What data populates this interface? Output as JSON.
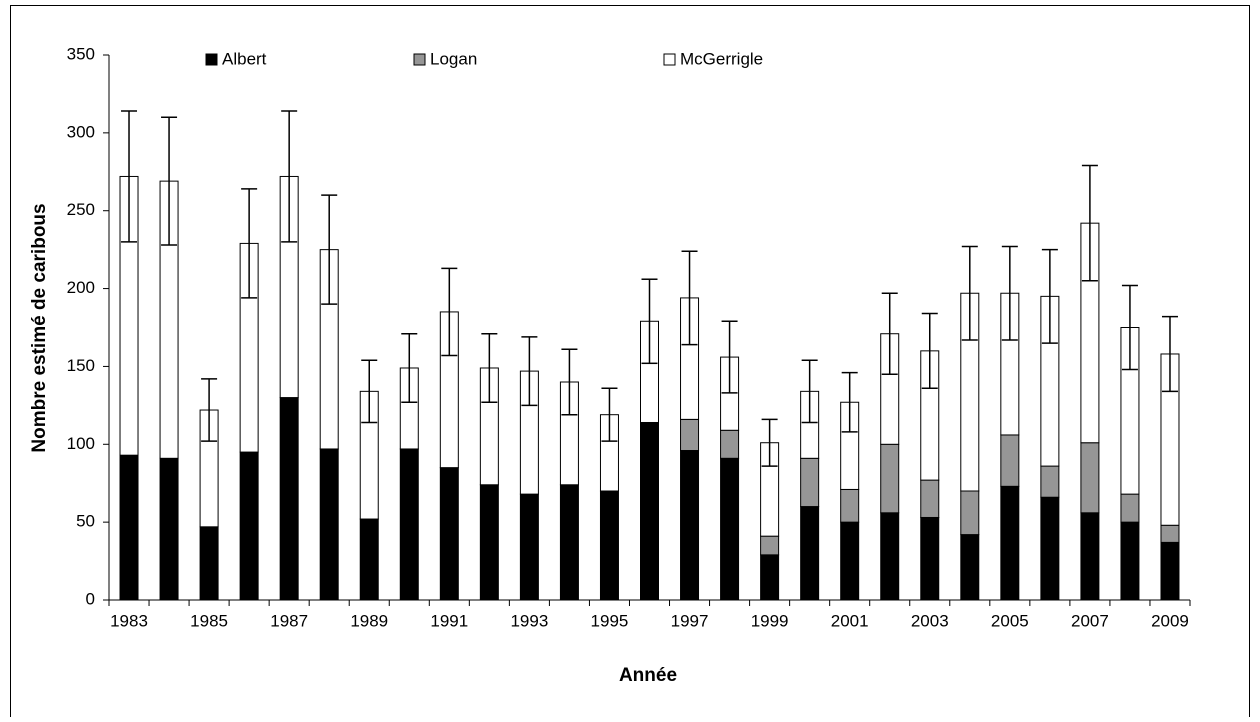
{
  "chart_data": {
    "type": "bar",
    "stacked": true,
    "xlabel": "Année",
    "ylabel": "Nombre estimé de caribous",
    "categories": [
      "1983",
      null,
      "1985",
      null,
      "1987",
      null,
      "1989",
      null,
      "1991",
      null,
      "1993",
      null,
      "1995",
      null,
      "1997",
      null,
      "1999",
      null,
      "2001",
      null,
      "2003",
      null,
      "2005",
      null,
      "2007",
      null,
      "2009"
    ],
    "series": [
      {
        "name": "Albert",
        "color": "#000000",
        "values": [
          93,
          91,
          47,
          95,
          130,
          97,
          52,
          97,
          85,
          74,
          68,
          74,
          70,
          114,
          96,
          91,
          29,
          60,
          50,
          56,
          53,
          42,
          73,
          66,
          56,
          50,
          37
        ]
      },
      {
        "name": "Logan",
        "color": "#969696",
        "values": [
          0,
          0,
          0,
          0,
          0,
          0,
          0,
          0,
          0,
          0,
          0,
          0,
          0,
          0,
          20,
          18,
          12,
          31,
          21,
          44,
          24,
          28,
          33,
          20,
          45,
          18,
          11
        ]
      },
      {
        "name": "McGerrigle",
        "color": "#ffffff",
        "values": [
          179,
          178,
          75,
          134,
          142,
          128,
          82,
          52,
          100,
          75,
          79,
          66,
          49,
          65,
          78,
          47,
          60,
          43,
          56,
          71,
          83,
          127,
          91,
          109,
          141,
          107,
          110
        ],
        "errors": [
          42,
          41,
          20,
          35,
          42,
          35,
          20,
          22,
          28,
          22,
          22,
          21,
          17,
          27,
          30,
          23,
          15,
          20,
          19,
          26,
          24,
          30,
          30,
          30,
          37,
          27,
          24
        ]
      }
    ],
    "ylim": [
      0,
      350
    ],
    "yticks": [
      0,
      50,
      100,
      150,
      200,
      250,
      300,
      350
    ],
    "grid": false,
    "legend": "top"
  }
}
